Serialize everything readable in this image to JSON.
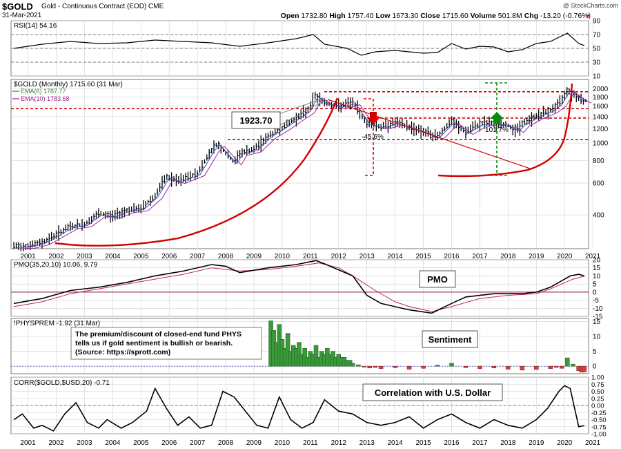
{
  "header": {
    "symbol": "$GOLD",
    "name": "Gold - Continuous Contract (EOD) CME",
    "date": "31-Mar-2021",
    "credit": "@ StockCharts.com",
    "quote": {
      "open_label": "Open",
      "open": "1732.80",
      "high_label": "High",
      "high": "1757.40",
      "low_label": "Low",
      "low": "1673.30",
      "close_label": "Close",
      "close": "1715.60",
      "volume_label": "Volume",
      "volume": "501.8M",
      "chg_label": "Chg",
      "chg": "-13.20 (-0.76%)"
    }
  },
  "colors": {
    "price": "#000000",
    "ema6": "#2a8a2a",
    "ema10": "#a3238e",
    "red": "#d40000",
    "green": "#0a8a0a",
    "pmo_signal": "#c02060",
    "grid": "#d0d0d0",
    "panel_bg": "#ffffff"
  },
  "x_axis": {
    "years": [
      "2001",
      "2002",
      "2003",
      "2004",
      "2005",
      "2006",
      "2007",
      "2008",
      "2009",
      "2010",
      "2011",
      "2012",
      "2013",
      "2014",
      "2015",
      "2016",
      "2017",
      "2018",
      "2019",
      "2020",
      "2021"
    ]
  },
  "chart_data": [
    {
      "type": "line",
      "panel": "rsi",
      "legend": "RSI(14) 54.16",
      "y_ticks": [
        10,
        30,
        50,
        70,
        90
      ],
      "ylim": [
        10,
        90
      ],
      "levels": [
        70,
        50,
        30
      ],
      "series": [
        {
          "x": [
            2001.0,
            2002.0,
            2003.0,
            2004.0,
            2005.0,
            2006.0,
            2007.0,
            2008.0,
            2009.0,
            2010.0,
            2011.0,
            2011.6,
            2012.0,
            2012.8,
            2013.3,
            2013.8,
            2014.5,
            2015.5,
            2016.0,
            2016.5,
            2017.0,
            2017.5,
            2018.0,
            2018.5,
            2019.0,
            2019.5,
            2020.0,
            2020.6,
            2021.0,
            2021.2
          ],
          "y": [
            50,
            56,
            60,
            57,
            58,
            62,
            60,
            58,
            53,
            58,
            64,
            70,
            56,
            50,
            40,
            45,
            47,
            43,
            44,
            57,
            49,
            53,
            52,
            45,
            48,
            57,
            60,
            72,
            57,
            54
          ]
        }
      ]
    },
    {
      "type": "candlestick",
      "panel": "price",
      "legend": "$GOLD (Monthly) 1715.60 (31 Mar)",
      "ema6_label": "EMA(6) 1787.77",
      "ema10_label": "EMA(10) 1783.68",
      "log_scale": true,
      "ylim": [
        260,
        2250
      ],
      "y_ticks": [
        400,
        600,
        800,
        1000,
        1200,
        1400,
        1600,
        1800,
        2000
      ],
      "series": [
        {
          "name": "$GOLD",
          "x": [
            2001.0,
            2001.5,
            2002.0,
            2002.5,
            2003.0,
            2003.5,
            2004.0,
            2004.5,
            2005.0,
            2005.5,
            2006.0,
            2006.4,
            2006.8,
            2007.5,
            2008.0,
            2008.2,
            2008.8,
            2009.0,
            2009.5,
            2010.0,
            2010.5,
            2011.0,
            2011.4,
            2011.67,
            2012.0,
            2012.5,
            2013.0,
            2013.3,
            2013.5,
            2014.0,
            2014.5,
            2015.0,
            2015.5,
            2015.95,
            2016.5,
            2017.0,
            2017.5,
            2018.0,
            2018.5,
            2018.8,
            2019.0,
            2019.5,
            2020.0,
            2020.3,
            2020.6,
            2021.0,
            2021.2
          ],
          "y": [
            268,
            270,
            282,
            312,
            345,
            355,
            405,
            395,
            425,
            435,
            510,
            650,
            615,
            680,
            920,
            990,
            780,
            880,
            920,
            1090,
            1220,
            1380,
            1520,
            1830,
            1680,
            1600,
            1680,
            1440,
            1290,
            1230,
            1300,
            1230,
            1160,
            1080,
            1320,
            1150,
            1280,
            1300,
            1250,
            1180,
            1280,
            1410,
            1520,
            1650,
            1980,
            1780,
            1715
          ]
        }
      ]
    },
    {
      "type": "line",
      "panel": "pmo",
      "legend": "PMO(35,20,10) 10.06, 9.79",
      "label": "PMO",
      "ylim": [
        -15,
        20
      ],
      "y_ticks": [
        -15,
        -10,
        -5,
        0,
        5,
        10,
        15,
        20
      ],
      "series": [
        {
          "name": "PMO",
          "x": [
            2001.0,
            2002.0,
            2003.0,
            2004.0,
            2005.0,
            2006.0,
            2007.0,
            2008.0,
            2008.5,
            2009.0,
            2010.0,
            2011.0,
            2011.7,
            2012.0,
            2013.0,
            2013.5,
            2014.0,
            2015.0,
            2015.8,
            2016.5,
            2017.0,
            2018.0,
            2019.0,
            2019.5,
            2020.0,
            2020.7,
            2021.0,
            2021.2
          ],
          "y": [
            -7,
            -4,
            1,
            3,
            6,
            10,
            13,
            17,
            16,
            12,
            15,
            17,
            19.5,
            17.5,
            10,
            -2,
            -7,
            -11,
            -13,
            -7,
            -3,
            -1,
            -1,
            0,
            3,
            10,
            11,
            10
          ]
        },
        {
          "name": "Signal",
          "x": [
            2001.0,
            2002.0,
            2003.0,
            2004.0,
            2005.0,
            2006.0,
            2007.0,
            2008.0,
            2009.0,
            2010.0,
            2011.0,
            2011.8,
            2012.5,
            2013.0,
            2013.8,
            2014.5,
            2015.0,
            2015.8,
            2016.5,
            2017.5,
            2018.5,
            2019.5,
            2020.0,
            2020.8,
            2021.2
          ],
          "y": [
            -9,
            -6,
            -1,
            2,
            5,
            8,
            11,
            15,
            13,
            14,
            16,
            18,
            15,
            10,
            1,
            -6,
            -9,
            -12,
            -9,
            -4,
            -2,
            -1,
            2,
            8,
            9.8
          ]
        }
      ]
    },
    {
      "type": "bar",
      "panel": "physprem",
      "legend": "!PHYSPREM -1.92 (31 Mar)",
      "label": "Sentiment",
      "note": [
        "The premium/discount of closed-end fund PHYS",
        "tells us if gold sentiment is bullish or bearish.",
        "(Source: https://sprott.com)"
      ],
      "y_ticks": [
        0,
        5,
        10,
        15
      ],
      "ylim": [
        -2.5,
        16
      ],
      "series": [
        {
          "x": [
            2010.1,
            2010.2,
            2010.3,
            2010.4,
            2010.5,
            2010.6,
            2010.7,
            2010.8,
            2010.9,
            2011.0,
            2011.1,
            2011.2,
            2011.3,
            2011.4,
            2011.5,
            2011.6,
            2011.7,
            2011.8,
            2011.9,
            2012.0,
            2012.1,
            2012.2,
            2012.3,
            2012.4,
            2012.5,
            2012.6,
            2012.7,
            2012.8,
            2012.9,
            2013.0,
            2013.2,
            2013.4,
            2013.6,
            2013.8,
            2014.0,
            2014.5,
            2015.0,
            2015.5,
            2016.0,
            2016.5,
            2017.0,
            2017.5,
            2018.0,
            2018.5,
            2019.0,
            2019.5,
            2020.0,
            2020.2,
            2020.4,
            2020.6,
            2020.8,
            2021.0,
            2021.1,
            2021.2
          ],
          "y": [
            15.2,
            12,
            8,
            14,
            9,
            6,
            11,
            5,
            7,
            6,
            8,
            4,
            6,
            3,
            5,
            4,
            7,
            3,
            5,
            4,
            6,
            4,
            5,
            3,
            4,
            3,
            3,
            2,
            2,
            1,
            0.5,
            -0.3,
            -0.6,
            -0.4,
            -0.8,
            -0.5,
            -1,
            -0.7,
            0.4,
            1,
            -0.5,
            -0.8,
            -0.6,
            -1,
            -1.3,
            -1.1,
            -0.8,
            -0.4,
            -0.7,
            2.8,
            0.7,
            -1.5,
            -2,
            -1.92
          ]
        }
      ]
    },
    {
      "type": "line",
      "panel": "corr",
      "legend": "CORR($GOLD,$USD,20) -0.71",
      "label": "Correlation with U.S. Dollar",
      "ylim": [
        -1,
        1
      ],
      "y_ticks": [
        "1.00",
        "0.75",
        "0.50",
        "0.25",
        "0.00",
        "-0.25",
        "-0.50",
        "-0.75",
        "-1.00"
      ],
      "series": [
        {
          "x": [
            2001.0,
            2001.3,
            2001.7,
            2002.0,
            2002.4,
            2002.8,
            2003.2,
            2003.6,
            2004.0,
            2004.3,
            2004.8,
            2005.2,
            2005.7,
            2006.0,
            2006.4,
            2006.8,
            2007.2,
            2007.6,
            2008.0,
            2008.4,
            2008.8,
            2009.2,
            2009.6,
            2010.0,
            2010.4,
            2010.8,
            2011.2,
            2011.6,
            2012.0,
            2012.5,
            2013.0,
            2013.5,
            2014.0,
            2014.5,
            2015.0,
            2015.5,
            2016.0,
            2016.5,
            2017.0,
            2017.5,
            2018.0,
            2018.5,
            2019.0,
            2019.5,
            2019.9,
            2020.3,
            2020.5,
            2020.7,
            2021.0,
            2021.2
          ],
          "y": [
            -0.5,
            -0.3,
            -0.8,
            -0.7,
            -0.9,
            -0.3,
            0.1,
            -0.6,
            -0.8,
            -0.5,
            -0.8,
            -0.6,
            -0.2,
            0.6,
            -0.1,
            -0.7,
            -0.4,
            -0.8,
            -0.7,
            0.5,
            0.3,
            -0.2,
            -0.7,
            -0.8,
            0.3,
            -0.5,
            -0.8,
            -0.6,
            0.2,
            -0.2,
            -0.3,
            -0.6,
            -0.7,
            -0.6,
            -0.4,
            -0.8,
            -0.5,
            -0.3,
            -0.6,
            -0.8,
            -0.5,
            -0.7,
            -0.8,
            -0.5,
            -0.1,
            0.5,
            0.7,
            0.6,
            -0.75,
            -0.71
          ]
        }
      ]
    }
  ],
  "annotations": {
    "peak_label": "1923.70",
    "drop_label": "-45.6%",
    "rise_label": "101.7%"
  }
}
